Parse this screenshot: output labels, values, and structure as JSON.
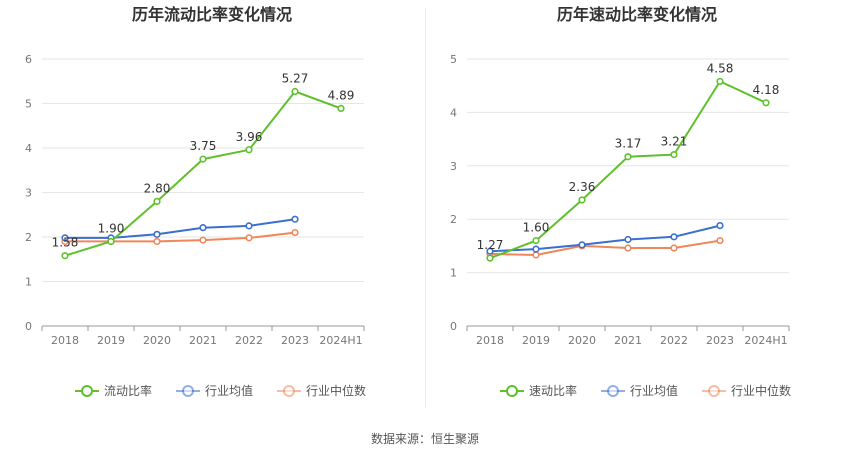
{
  "source_label": "数据来源：恒生聚源",
  "colors": {
    "main_left": "#5ec02b",
    "main_right": "#5ec02b",
    "industry_avg": "#3a6fcf",
    "industry_median": "#f0875a",
    "axis": "#777777",
    "grid": "#e6e6e6",
    "title": "#333333"
  },
  "chart_data": [
    {
      "type": "line",
      "title": "历年流动比率变化情况",
      "categories": [
        "2018",
        "2019",
        "2020",
        "2021",
        "2022",
        "2023",
        "2024H1"
      ],
      "y_ticks": [
        "0",
        "1",
        "2",
        "3",
        "4",
        "5",
        "6"
      ],
      "ylim": [
        0,
        6
      ],
      "grid": true,
      "legend_position": "bottom",
      "series": [
        {
          "name": "流动比率",
          "values": [
            1.58,
            1.9,
            2.8,
            3.75,
            3.96,
            5.27,
            4.89
          ],
          "labels": [
            "1.58",
            "1.90",
            "2.80",
            "3.75",
            "3.96",
            "5.27",
            "4.89"
          ]
        },
        {
          "name": "行业均值",
          "values": [
            1.98,
            1.98,
            2.06,
            2.21,
            2.25,
            2.4,
            null
          ]
        },
        {
          "name": "行业中位数",
          "values": [
            1.9,
            1.9,
            1.9,
            1.93,
            1.98,
            2.1,
            null
          ]
        }
      ]
    },
    {
      "type": "line",
      "title": "历年速动比率变化情况",
      "categories": [
        "2018",
        "2019",
        "2020",
        "2021",
        "2022",
        "2023",
        "2024H1"
      ],
      "y_ticks": [
        "0",
        "1",
        "2",
        "3",
        "4",
        "5"
      ],
      "ylim": [
        0,
        5
      ],
      "grid": true,
      "legend_position": "bottom",
      "series": [
        {
          "name": "速动比率",
          "values": [
            1.27,
            1.6,
            2.36,
            3.17,
            3.21,
            4.58,
            4.18
          ],
          "labels": [
            "1.27",
            "1.60",
            "2.36",
            "3.17",
            "3.21",
            "4.58",
            "4.18"
          ]
        },
        {
          "name": "行业均值",
          "values": [
            1.4,
            1.44,
            1.52,
            1.62,
            1.67,
            1.88,
            null
          ]
        },
        {
          "name": "行业中位数",
          "values": [
            1.35,
            1.33,
            1.5,
            1.46,
            1.46,
            1.6,
            null
          ]
        }
      ]
    }
  ]
}
